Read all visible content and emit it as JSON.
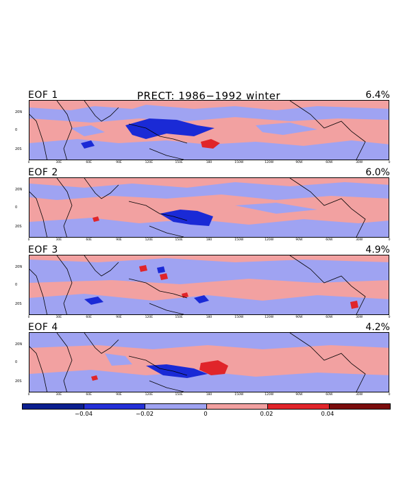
{
  "title": "PRECT: 1986−1992 winter",
  "panels": [
    {
      "label": "EOF 1",
      "variance": "6.4%"
    },
    {
      "label": "EOF 2",
      "variance": "6.0%"
    },
    {
      "label": "EOF 3",
      "variance": "4.9%"
    },
    {
      "label": "EOF 4",
      "variance": "4.2%"
    }
  ],
  "lat_ticks": [
    "20N",
    "0",
    "20S"
  ],
  "lon_ticks": [
    "0",
    "30E",
    "60E",
    "90E",
    "120E",
    "150E",
    "180",
    "150W",
    "120W",
    "90W",
    "60W",
    "30W",
    "0"
  ],
  "colorbar": {
    "colors": [
      "#0b1f8f",
      "#2430d6",
      "#9fa3f2",
      "#f2a1a1",
      "#e0252a",
      "#7a0c0c"
    ],
    "labels": [
      "−0.04",
      "−0.02",
      "0",
      "0.02",
      "0.04"
    ]
  },
  "map_colors": {
    "positive_weak": "#f2a1a1",
    "negative_weak": "#9fa3f2",
    "negative_strong": "#1a2ad6",
    "positive_strong": "#e0252a",
    "coastline": "#000000"
  }
}
